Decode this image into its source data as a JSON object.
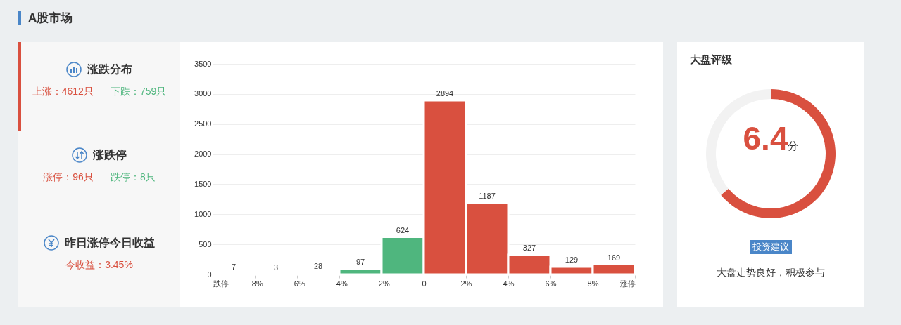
{
  "chart_data": [
    {
      "type": "other",
      "title": "A股市场",
      "annotations": [
        "涨跌分布",
        "上涨：4612只",
        "下跌：759只",
        "涨跌停",
        "涨停：96只",
        "跌停：8只",
        "昨日涨停今日收益",
        "今收益：3.45%"
      ]
    },
    {
      "type": "histogram",
      "bins": [
        -10,
        -8,
        -6,
        -4,
        -2,
        0,
        2,
        4,
        6,
        8,
        10
      ],
      "values": [
        7,
        3,
        28,
        97,
        624,
        2894,
        1187,
        327,
        129,
        169
      ],
      "colors": [
        "#4fb67e",
        "#4fb67e",
        "#4fb67e",
        "#4fb67e",
        "#4fb67e",
        "#d9503f",
        "#d9503f",
        "#d9503f",
        "#d9503f",
        "#d9503f"
      ],
      "xlim": [
        -10,
        10
      ],
      "xticks": [
        {
          "value": -10,
          "label": "跌停"
        },
        {
          "value": -8,
          "label": "−8%"
        },
        {
          "value": -6,
          "label": "−6%"
        },
        {
          "value": -4,
          "label": "−4%"
        },
        {
          "value": -2,
          "label": "−2%"
        },
        0,
        {
          "value": 2,
          "label": "2%"
        },
        {
          "value": 4,
          "label": "4%"
        },
        {
          "value": 6,
          "label": "6%"
        },
        {
          "value": 8,
          "label": "8%"
        },
        {
          "value": 10,
          "label": "涨停"
        }
      ],
      "ylim": [
        0,
        3500
      ],
      "yticks": [
        0,
        500,
        1000,
        1500,
        2000,
        2500,
        3000,
        3500
      ],
      "grid": "y",
      "data_labels": true
    },
    {
      "type": "donut",
      "title": "大盘评级",
      "categories": [
        null,
        null
      ],
      "values": [
        64,
        36
      ],
      "colors": [
        "#d9503f",
        "#f2f2f2"
      ],
      "annotations": [
        "6.4",
        "分",
        "投资建议",
        "大盘走势良好，积极参与"
      ]
    }
  ]
}
